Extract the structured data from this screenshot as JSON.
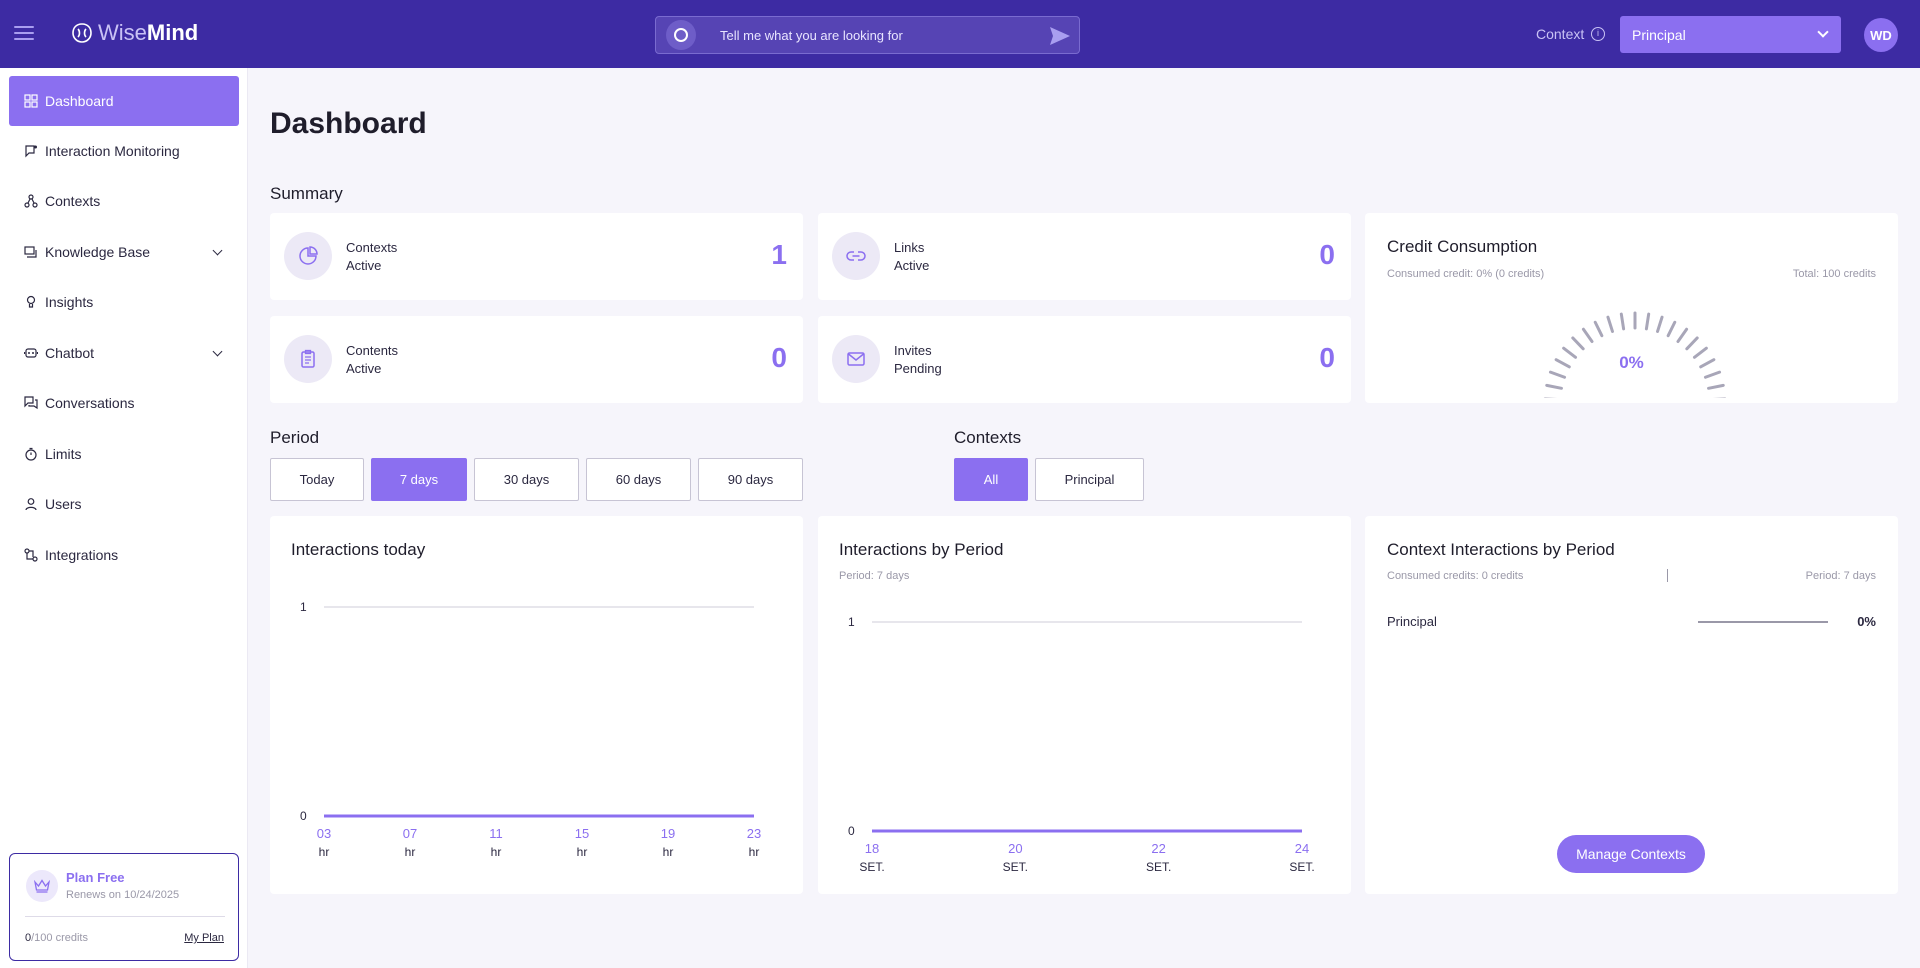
{
  "header": {
    "logo_wise": "Wise",
    "logo_mind": "Mind",
    "search_placeholder": "Tell me what you are looking for",
    "context_label": "Context",
    "context_value": "Principal",
    "avatar_initials": "WD"
  },
  "sidebar": {
    "items": [
      {
        "label": "Dashboard",
        "icon": "dashboard-icon",
        "active": true
      },
      {
        "label": "Interaction Monitoring",
        "icon": "monitoring-icon"
      },
      {
        "label": "Contexts",
        "icon": "contexts-icon"
      },
      {
        "label": "Knowledge Base",
        "icon": "knowledge-icon",
        "expandable": true
      },
      {
        "label": "Insights",
        "icon": "lightbulb-icon"
      },
      {
        "label": "Chatbot",
        "icon": "chatbot-icon",
        "expandable": true
      },
      {
        "label": "Conversations",
        "icon": "conversations-icon"
      },
      {
        "label": "Limits",
        "icon": "timer-icon"
      },
      {
        "label": "Users",
        "icon": "user-icon"
      },
      {
        "label": "Integrations",
        "icon": "integrations-icon"
      }
    ],
    "plan": {
      "title": "Plan Free",
      "renews": "Renews on 10/24/2025",
      "credits_used": "0",
      "credits_total": "/100 credits",
      "link": "My Plan"
    }
  },
  "main": {
    "title": "Dashboard",
    "summary_title": "Summary",
    "stats": [
      {
        "line1": "Contexts",
        "line2": "Active",
        "value": "1",
        "icon": "pie-chart-icon"
      },
      {
        "line1": "Links",
        "line2": "Active",
        "value": "0",
        "icon": "link-icon"
      },
      {
        "line1": "Contents",
        "line2": "Active",
        "value": "0",
        "icon": "clipboard-icon"
      },
      {
        "line1": "Invites",
        "line2": "Pending",
        "value": "0",
        "icon": "mail-icon"
      }
    ],
    "credit": {
      "title": "Credit Consumption",
      "consumed": "Consumed credit: 0% (0 credits)",
      "total": "Total: 100 credits",
      "percent": "0%",
      "fraction": 0
    },
    "period": {
      "title": "Period",
      "options": [
        "Today",
        "7 days",
        "30 days",
        "60 days",
        "90 days"
      ],
      "selected": "7 days"
    },
    "contexts_filter": {
      "title": "Contexts",
      "options": [
        "All",
        "Principal"
      ],
      "selected": "All"
    },
    "context_interactions": {
      "title": "Context Interactions by Period",
      "consumed": "Consumed credits: 0 credits",
      "period": "Period: 7 days",
      "rows": [
        {
          "name": "Principal",
          "percent": "0%",
          "fraction": 0
        }
      ],
      "button": "Manage Contexts"
    }
  },
  "chart_data": [
    {
      "type": "line",
      "title": "Interactions today",
      "categories": [
        [
          "03",
          "hr"
        ],
        [
          "07",
          "hr"
        ],
        [
          "11",
          "hr"
        ],
        [
          "15",
          "hr"
        ],
        [
          "19",
          "hr"
        ],
        [
          "23",
          "hr"
        ]
      ],
      "series": [
        {
          "values": [
            0,
            0,
            0,
            0,
            0,
            0
          ]
        }
      ],
      "ylim": [
        0,
        1
      ],
      "yticks": [
        "0",
        "1"
      ]
    },
    {
      "type": "line",
      "title": "Interactions by Period",
      "subtitle": "Period: 7 days",
      "categories": [
        [
          "18",
          "SET."
        ],
        [
          "20",
          "SET."
        ],
        [
          "22",
          "SET."
        ],
        [
          "24",
          "SET."
        ]
      ],
      "series": [
        {
          "values": [
            0,
            0,
            0,
            0
          ]
        }
      ],
      "ylim": [
        0,
        1
      ],
      "yticks": [
        "0",
        "1"
      ]
    }
  ]
}
